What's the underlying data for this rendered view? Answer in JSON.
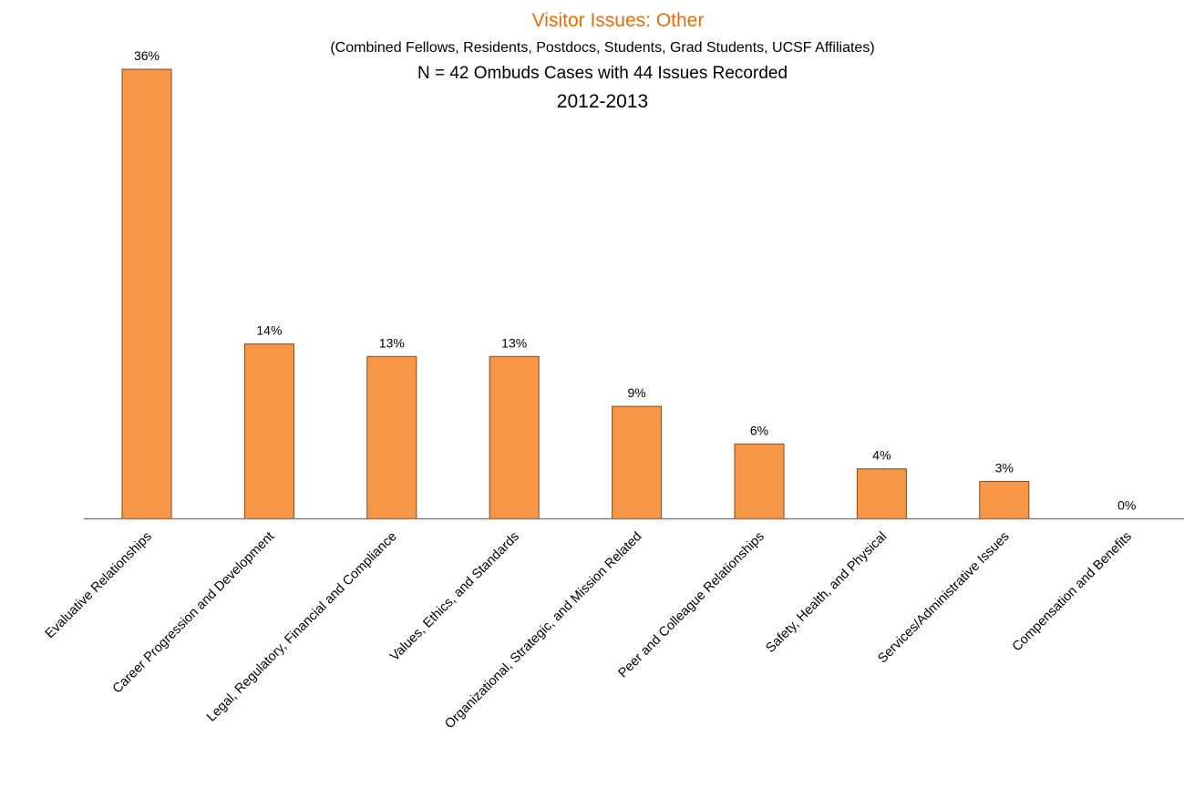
{
  "chart_data": {
    "type": "bar",
    "title": "Visitor Issues: Other",
    "subtitle": "(Combined Fellows, Residents, Postdocs, Students, Grad Students, UCSF Affiliates)",
    "subtitle2": "N = 42 Ombuds Cases with 44 Issues Recorded",
    "subtitle3": "2012-2013",
    "categories": [
      "Evaluative Relationships",
      "Career Progression and Development",
      "Legal, Regulatory, Financial and Compliance",
      "Values, Ethics, and Standards",
      "Organizational, Strategic, and Mission Related",
      "Peer and Colleague Relationships",
      "Safety, Health, and Physical",
      "Services/Administrative Issues",
      "Compensation and Benefits"
    ],
    "values": [
      36,
      14,
      13,
      13,
      9,
      6,
      4,
      3,
      0
    ],
    "data_labels": [
      "36%",
      "14%",
      "13%",
      "13%",
      "9%",
      "6%",
      "4%",
      "3%",
      "0%"
    ],
    "ylim": [
      0,
      36
    ],
    "grid": false,
    "legend": "none",
    "colors": {
      "bar_fill": "#F79646",
      "bar_stroke": "#7F4A1E",
      "title": "#E46C0A",
      "axis": "#808080"
    }
  }
}
